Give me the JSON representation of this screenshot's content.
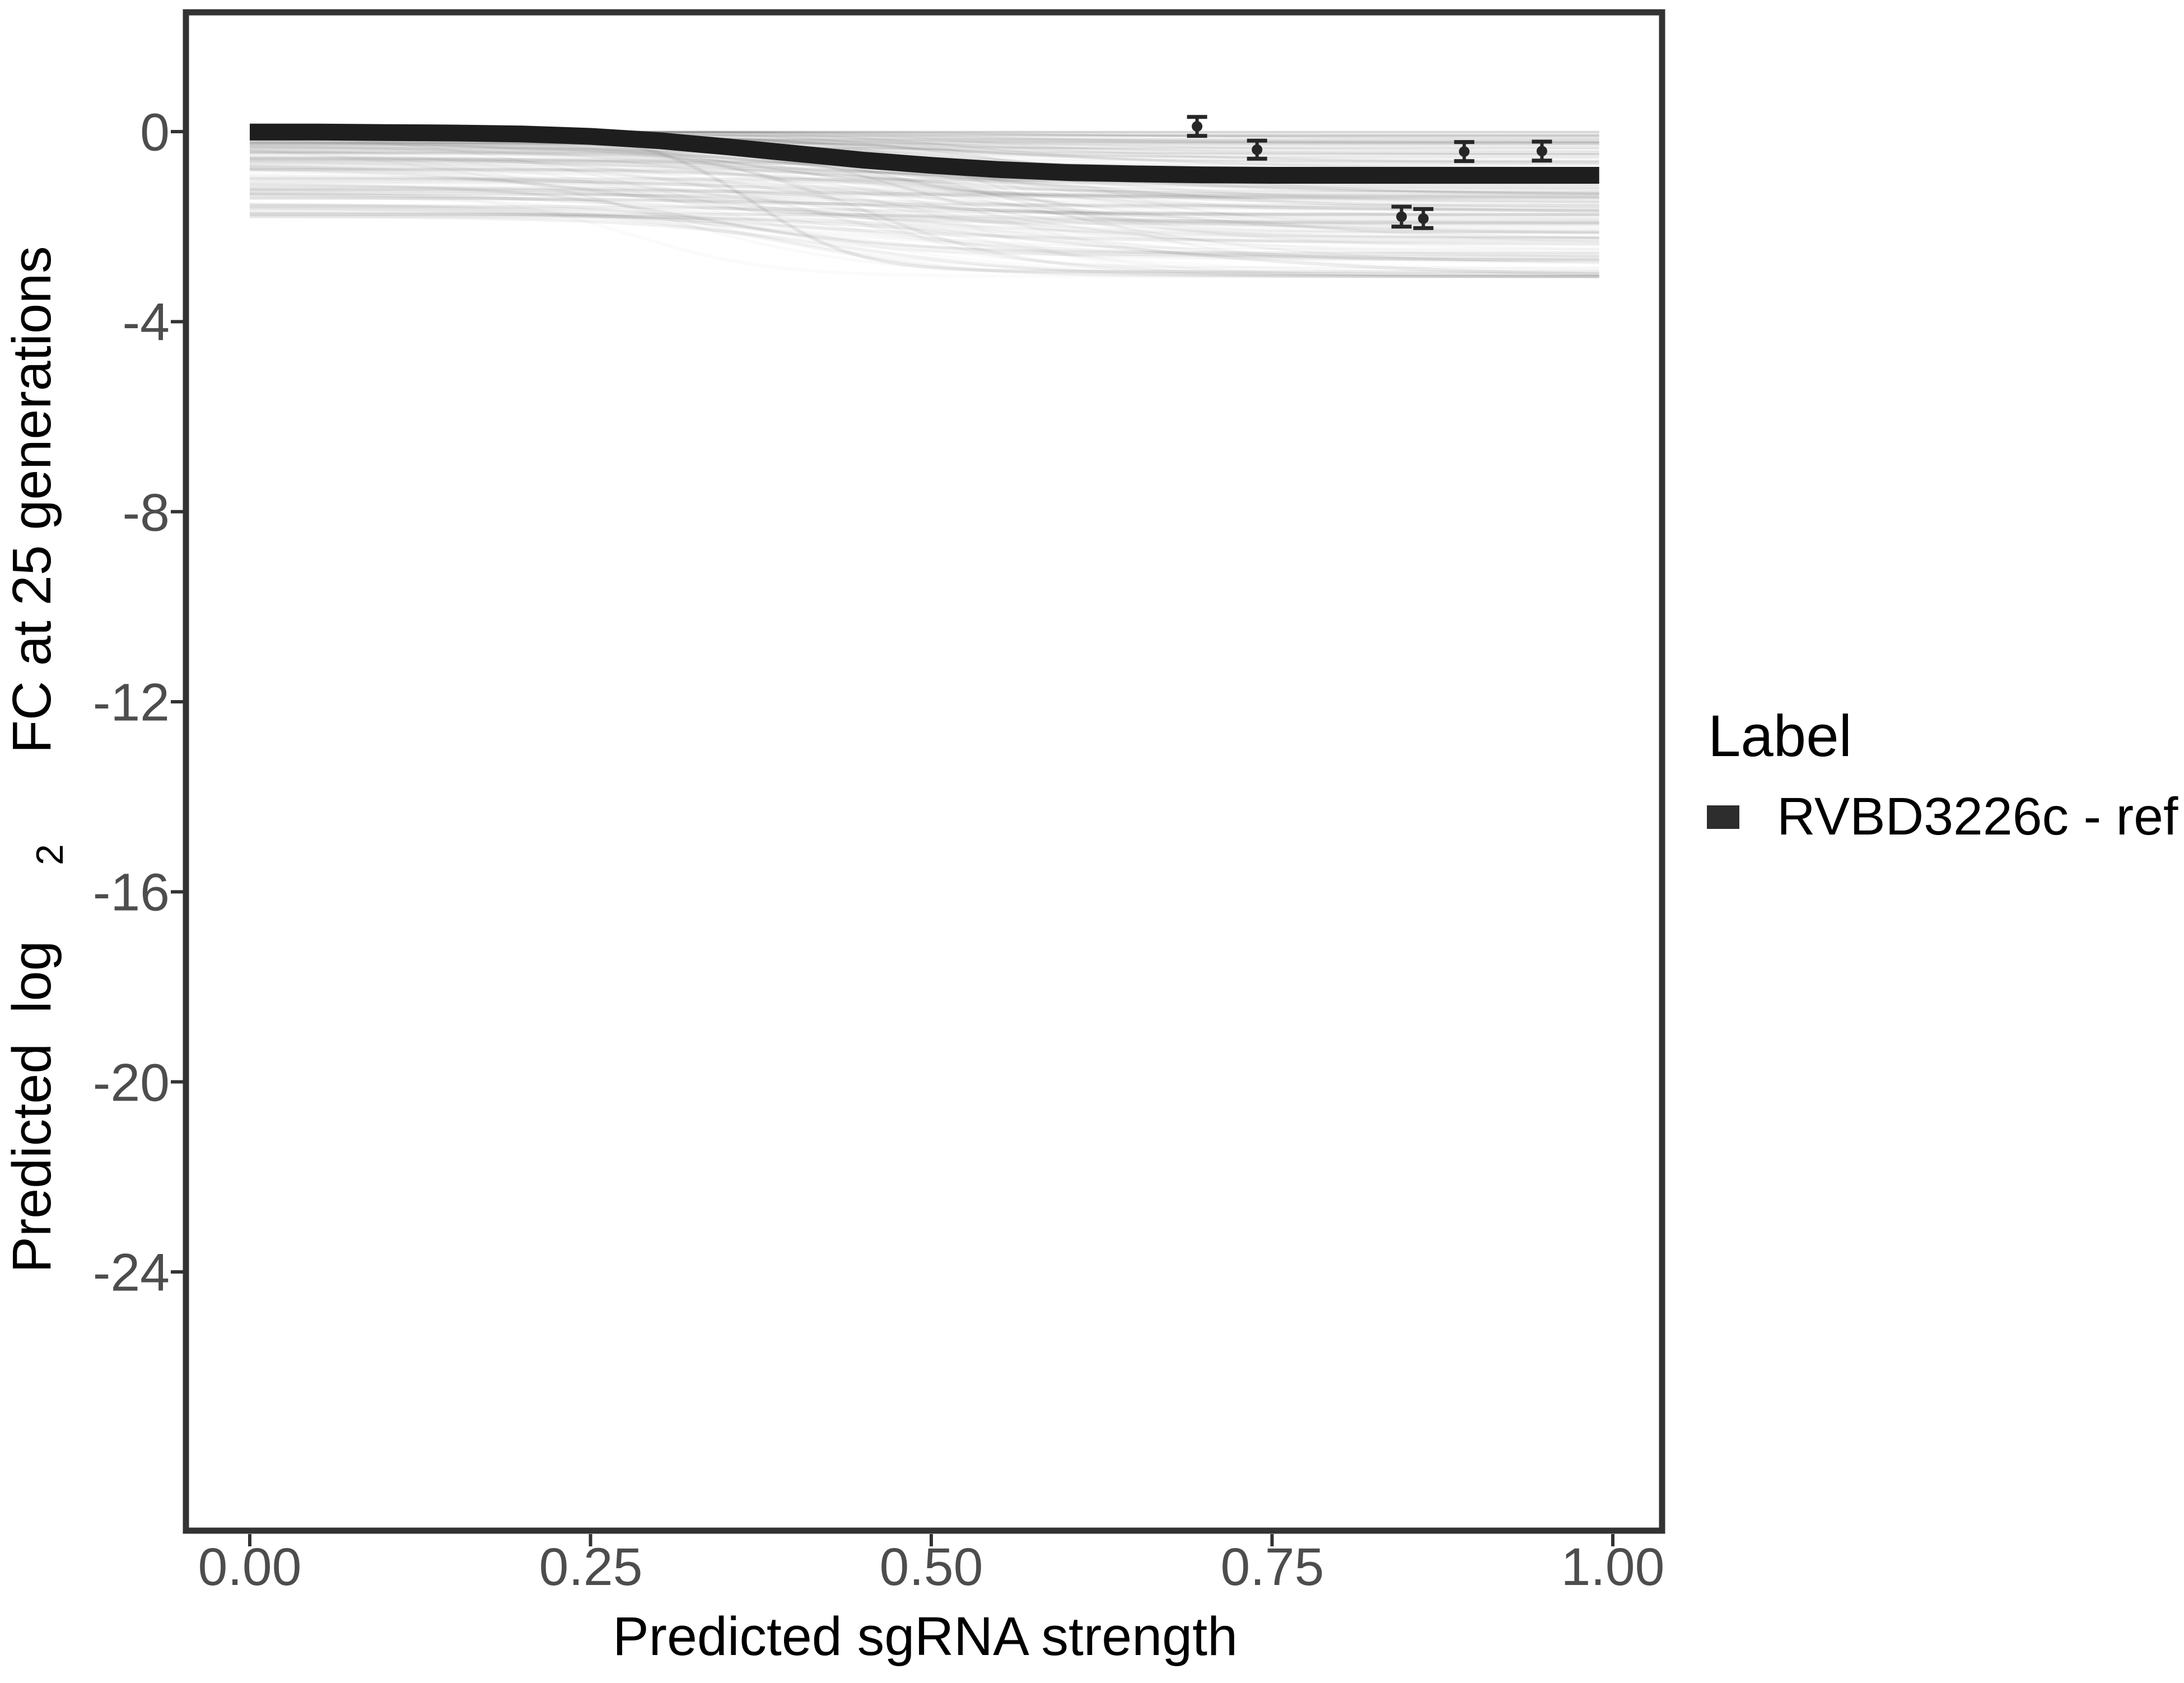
{
  "chart_data": {
    "type": "line",
    "title": "",
    "xlabel": "Predicted sgRNA strength",
    "ylabel": {
      "pre": "Predicted  log",
      "sub": "2",
      "post": " FC at 25 generations"
    },
    "x_ticks": [
      0,
      0.25,
      0.5,
      0.75,
      1.0
    ],
    "x_tick_labels": [
      "0.00",
      "0.25",
      "0.50",
      "0.75",
      "1.00"
    ],
    "y_ticks": [
      0,
      -4,
      -8,
      -12,
      -16,
      -20,
      -24
    ],
    "y_tick_labels": [
      "0",
      "-4",
      "-8",
      "-12",
      "-16",
      "-20",
      "-24"
    ],
    "xlim": [
      -0.047,
      1.037
    ],
    "ylim": [
      -29.5,
      2.5
    ],
    "grid": "off",
    "legend": {
      "position": "right",
      "title": "Label",
      "entries": [
        {
          "label": "RVBD3226c - ref",
          "color": "#1e1e1e"
        }
      ]
    },
    "reference_curve": {
      "name": "RVBD3226c - ref",
      "points": [
        [
          0.0,
          -0.01
        ],
        [
          0.05,
          -0.01
        ],
        [
          0.1,
          -0.02
        ],
        [
          0.15,
          -0.03
        ],
        [
          0.2,
          -0.05
        ],
        [
          0.25,
          -0.1
        ],
        [
          0.3,
          -0.19
        ],
        [
          0.35,
          -0.32
        ],
        [
          0.4,
          -0.46
        ],
        [
          0.45,
          -0.6
        ],
        [
          0.5,
          -0.71
        ],
        [
          0.55,
          -0.8
        ],
        [
          0.6,
          -0.86
        ],
        [
          0.65,
          -0.89
        ],
        [
          0.7,
          -0.91
        ],
        [
          0.75,
          -0.92
        ],
        [
          0.8,
          -0.92
        ],
        [
          0.85,
          -0.92
        ],
        [
          0.9,
          -0.92
        ],
        [
          0.95,
          -0.92
        ],
        [
          0.99,
          -0.92
        ]
      ]
    },
    "error_points": [
      {
        "x": 0.695,
        "y": 0.11,
        "err": 0.2
      },
      {
        "x": 0.739,
        "y": -0.38,
        "err": 0.19
      },
      {
        "x": 0.845,
        "y": -1.79,
        "err": 0.21
      },
      {
        "x": 0.861,
        "y": -1.83,
        "err": 0.2
      },
      {
        "x": 0.891,
        "y": -0.42,
        "err": 0.2
      },
      {
        "x": 0.948,
        "y": -0.41,
        "err": 0.2
      }
    ],
    "background_curves": {
      "description": "ensemble of gray predicted sgRNA dose-response sigmoid curves",
      "count": 150,
      "seed": 42,
      "start_value_range": [
        0,
        -1.8
      ],
      "end_value_floor": -3.05,
      "midpoint_range": [
        0.28,
        0.63
      ],
      "steepness_range": [
        0.045,
        0.135
      ],
      "extra_faint_curves": [
        {
          "a": -0.05,
          "b": -2.95,
          "m": 0.37,
          "k": 0.038,
          "alpha": 0.08,
          "w": 6
        },
        {
          "a": -0.3,
          "b": -3.0,
          "m": 0.45,
          "k": 0.06,
          "alpha": 0.06,
          "w": 6
        },
        {
          "a": -1.1,
          "b": -2.55,
          "m": 0.33,
          "k": 0.07,
          "alpha": 0.07,
          "w": 5
        }
      ]
    },
    "colors": {
      "reference": "#1e1e1e",
      "ensemble": "#1e1e1e",
      "error_bar": "#262626",
      "border": "#333333",
      "tick_mark": "#333333",
      "tick_label": "#4d4d4d",
      "axis_title": "#000000",
      "background": "#ffffff"
    }
  }
}
